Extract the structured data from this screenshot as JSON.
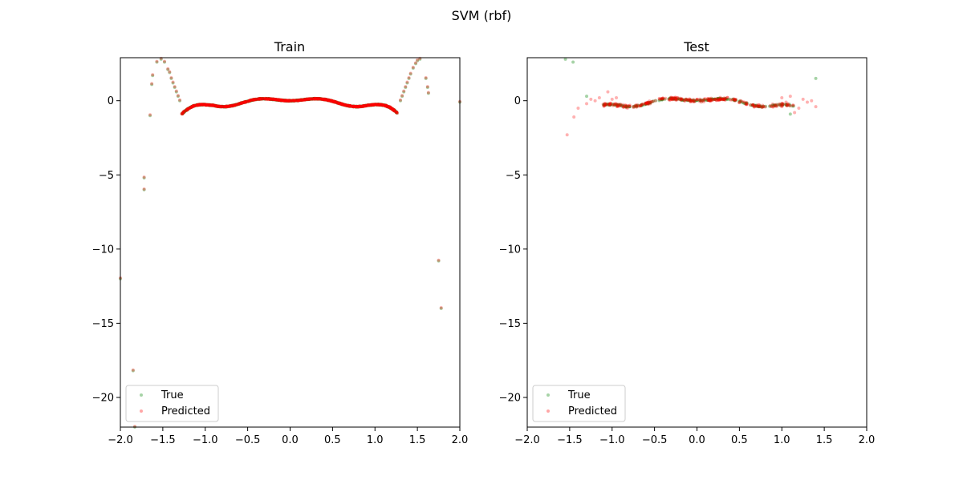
{
  "chart_data": {
    "suptitle": "SVM (rbf)",
    "type": "scatter",
    "colors": {
      "true": "#008000",
      "predicted": "#ff0000"
    },
    "legend_placement": "lower-left",
    "panels": [
      {
        "title": "Train",
        "xlim": [
          -2.0,
          2.0
        ],
        "ylim": [
          -22,
          2.9
        ],
        "xticks": [
          -2.0,
          -1.5,
          -1.0,
          -0.5,
          0.0,
          0.5,
          1.0,
          1.5,
          2.0
        ],
        "xtick_labels": [
          "−2.0",
          "−1.5",
          "−1.0",
          "−0.5",
          "0.0",
          "0.5",
          "1.0",
          "1.5",
          "2.0"
        ],
        "yticks": [
          0,
          -5,
          -10,
          -15,
          -20
        ],
        "ytick_labels": [
          "0",
          "−5",
          "−10",
          "−15",
          "−20"
        ],
        "curve_x_range": [
          -1.27,
          1.27
        ],
        "legend": [
          "True",
          "Predicted"
        ],
        "outliers": [
          [
            -2.0,
            -12.0
          ],
          [
            -1.85,
            -18.2
          ],
          [
            -1.83,
            -22.0
          ],
          [
            -1.72,
            -5.2
          ],
          [
            -1.72,
            -6.0
          ],
          [
            -1.65,
            -1.0
          ],
          [
            -1.63,
            1.1
          ],
          [
            -1.62,
            1.7
          ],
          [
            -1.57,
            2.6
          ],
          [
            -1.52,
            2.8
          ],
          [
            -1.48,
            2.6
          ],
          [
            -1.44,
            2.1
          ],
          [
            -1.42,
            1.9
          ],
          [
            -1.4,
            1.5
          ],
          [
            -1.38,
            1.2
          ],
          [
            -1.36,
            0.9
          ],
          [
            -1.34,
            0.6
          ],
          [
            -1.32,
            0.3
          ],
          [
            -1.3,
            0.0
          ],
          [
            1.3,
            0.0
          ],
          [
            1.32,
            0.3
          ],
          [
            1.34,
            0.6
          ],
          [
            1.36,
            0.9
          ],
          [
            1.38,
            1.2
          ],
          [
            1.4,
            1.5
          ],
          [
            1.42,
            1.8
          ],
          [
            1.45,
            2.2
          ],
          [
            1.48,
            2.5
          ],
          [
            1.5,
            2.7
          ],
          [
            1.53,
            2.8
          ],
          [
            1.6,
            1.5
          ],
          [
            1.62,
            0.9
          ],
          [
            1.63,
            0.5
          ],
          [
            1.75,
            -10.8
          ],
          [
            1.78,
            -14.0
          ],
          [
            2.0,
            -0.1
          ]
        ]
      },
      {
        "title": "Test",
        "xlim": [
          -2.0,
          2.0
        ],
        "ylim": [
          -22,
          2.9
        ],
        "xticks": [
          -2.0,
          -1.5,
          -1.0,
          -0.5,
          0.0,
          0.5,
          1.0,
          1.5,
          2.0
        ],
        "xtick_labels": [
          "−2.0",
          "−1.5",
          "−1.0",
          "−0.5",
          "0.0",
          "0.5",
          "1.0",
          "1.5",
          "2.0"
        ],
        "yticks": [
          0,
          -5,
          -10,
          -15,
          -20
        ],
        "ytick_labels": [
          "0",
          "−5",
          "−10",
          "−15",
          "−20"
        ],
        "curve_x_range": [
          -1.1,
          1.15
        ],
        "legend": [
          "True",
          "Predicted"
        ],
        "true_outliers": [
          [
            -1.55,
            2.8
          ],
          [
            -1.46,
            2.6
          ],
          [
            1.4,
            1.5
          ],
          [
            -1.3,
            0.3
          ],
          [
            1.1,
            -0.9
          ]
        ],
        "pred_outliers": [
          [
            -1.53,
            -2.3
          ],
          [
            -1.45,
            -1.1
          ],
          [
            -1.4,
            -0.5
          ],
          [
            -1.3,
            -0.2
          ],
          [
            -1.25,
            0.1
          ],
          [
            -1.2,
            0.0
          ],
          [
            -1.15,
            0.2
          ],
          [
            -1.05,
            0.6
          ],
          [
            -1.0,
            0.1
          ],
          [
            -0.95,
            0.2
          ],
          [
            1.0,
            0.2
          ],
          [
            1.05,
            -0.1
          ],
          [
            1.1,
            0.3
          ],
          [
            1.2,
            -0.5
          ],
          [
            1.25,
            0.1
          ],
          [
            1.3,
            -0.1
          ],
          [
            1.35,
            0.0
          ],
          [
            1.4,
            -0.4
          ],
          [
            1.15,
            -0.8
          ],
          [
            1.0,
            -0.4
          ]
        ]
      }
    ]
  }
}
